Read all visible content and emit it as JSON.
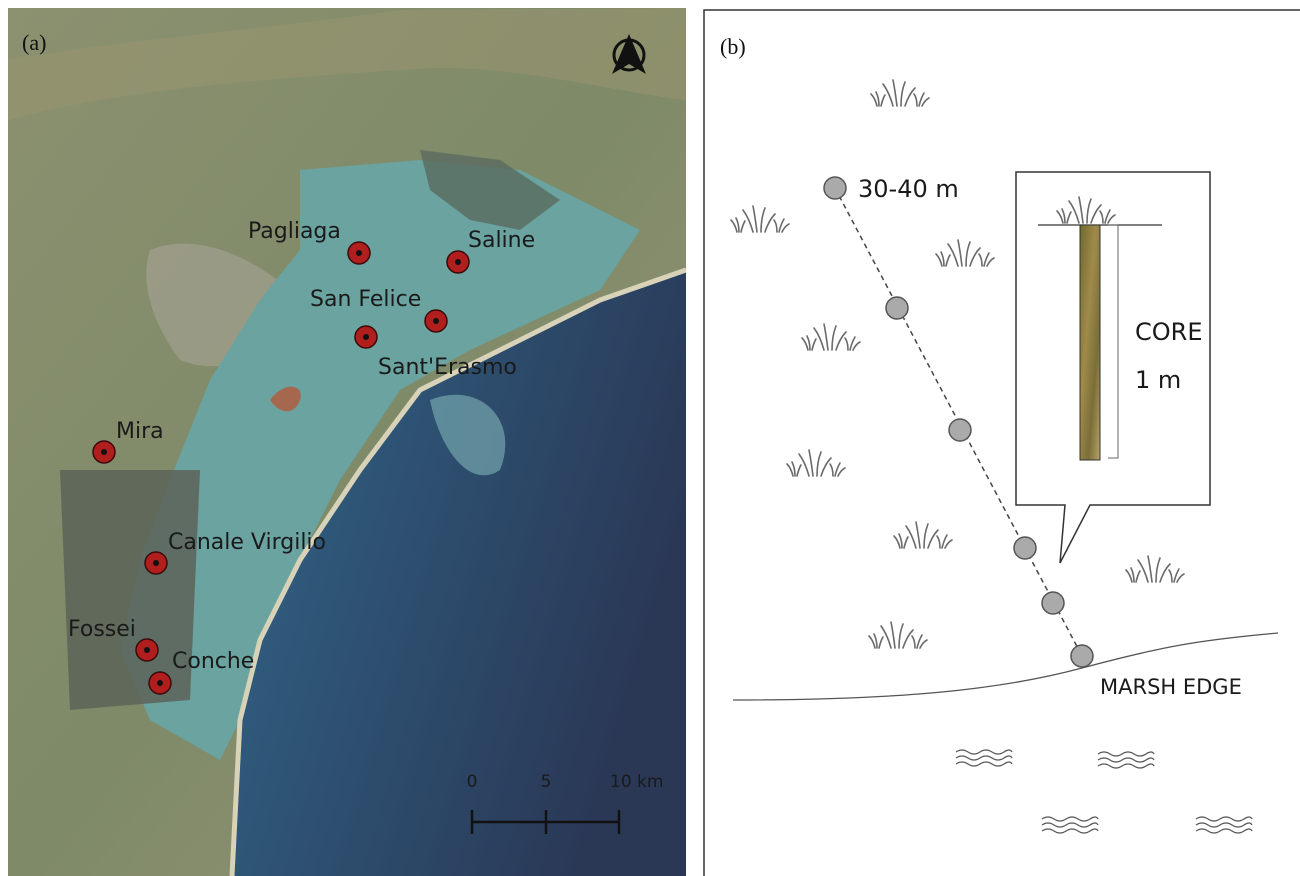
{
  "panel_a": {
    "label": "(a)",
    "sites": [
      {
        "name": "Pagliaga"
      },
      {
        "name": "Saline"
      },
      {
        "name": "San Felice"
      },
      {
        "name": "Sant'Erasmo"
      },
      {
        "name": "Mira"
      },
      {
        "name": "Canale Virgilio"
      },
      {
        "name": "Fossei"
      },
      {
        "name": "Conche"
      }
    ],
    "scale_bar": {
      "labels": [
        "0",
        "5",
        "10 km"
      ]
    }
  },
  "panel_b": {
    "label": "(b)",
    "distance_label": "30-40 m",
    "core_label": [
      "CORE",
      "1 m"
    ],
    "edge_label": "MARSH EDGE"
  }
}
